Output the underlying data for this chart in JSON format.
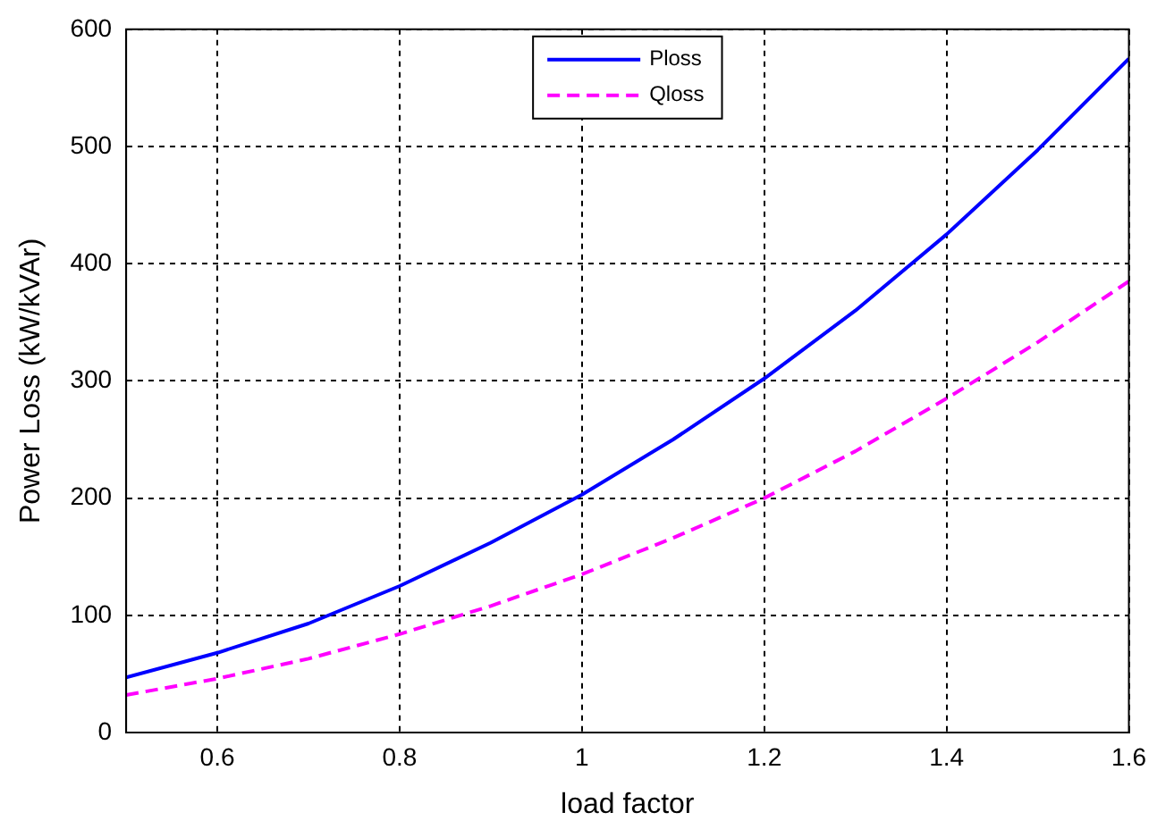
{
  "chart_data": {
    "type": "line",
    "xlabel": "load factor",
    "ylabel": "Power Loss (kW/kVAr)",
    "x": [
      0.5,
      0.6,
      0.7,
      0.8,
      0.9,
      1.0,
      1.1,
      1.2,
      1.3,
      1.4,
      1.5,
      1.6
    ],
    "series": [
      {
        "name": "Ploss",
        "color": "#0000ff",
        "line_style": "solid",
        "values": [
          47,
          68,
          93,
          125,
          162,
          203,
          250,
          302,
          360,
          425,
          497,
          575
        ]
      },
      {
        "name": "Qloss",
        "color": "#ff00ff",
        "line_style": "dashed",
        "values": [
          32,
          46,
          63,
          84,
          108,
          135,
          166,
          200,
          240,
          285,
          333,
          385
        ]
      }
    ],
    "xlim": [
      0.5,
      1.6
    ],
    "xticks": [
      0.6,
      0.8,
      1,
      1.2,
      1.4,
      1.6
    ],
    "ylim": [
      0,
      600
    ],
    "yticks": [
      0,
      100,
      200,
      300,
      400,
      500,
      600
    ],
    "grid": true,
    "legend": "top",
    "marker": "none"
  }
}
